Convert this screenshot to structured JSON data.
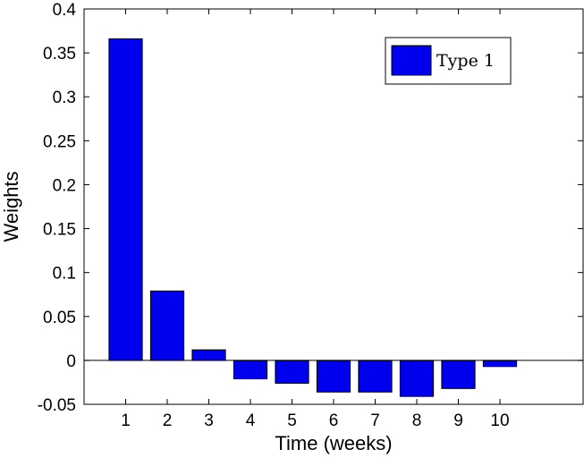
{
  "chart_data": {
    "type": "bar",
    "categories": [
      "1",
      "2",
      "3",
      "4",
      "5",
      "6",
      "7",
      "8",
      "9",
      "10"
    ],
    "series": [
      {
        "name": "Type 1",
        "color": "#0000ee",
        "values": [
          0.366,
          0.079,
          0.012,
          -0.021,
          -0.026,
          -0.036,
          -0.036,
          -0.041,
          -0.032,
          -0.007
        ]
      }
    ],
    "title": "",
    "xlabel": "Time (weeks)",
    "ylabel": "Weights",
    "xlim": [
      0,
      12
    ],
    "ylim": [
      -0.05,
      0.4
    ],
    "yticks": [
      "-0.05",
      "0",
      "0.05",
      "0.1",
      "0.15",
      "0.2",
      "0.25",
      "0.3",
      "0.35",
      "0.4"
    ],
    "ytick_values": [
      -0.05,
      0,
      0.05,
      0.1,
      0.15,
      0.2,
      0.25,
      0.3,
      0.35,
      0.4
    ],
    "grid": false,
    "legend_position": "top-right"
  }
}
